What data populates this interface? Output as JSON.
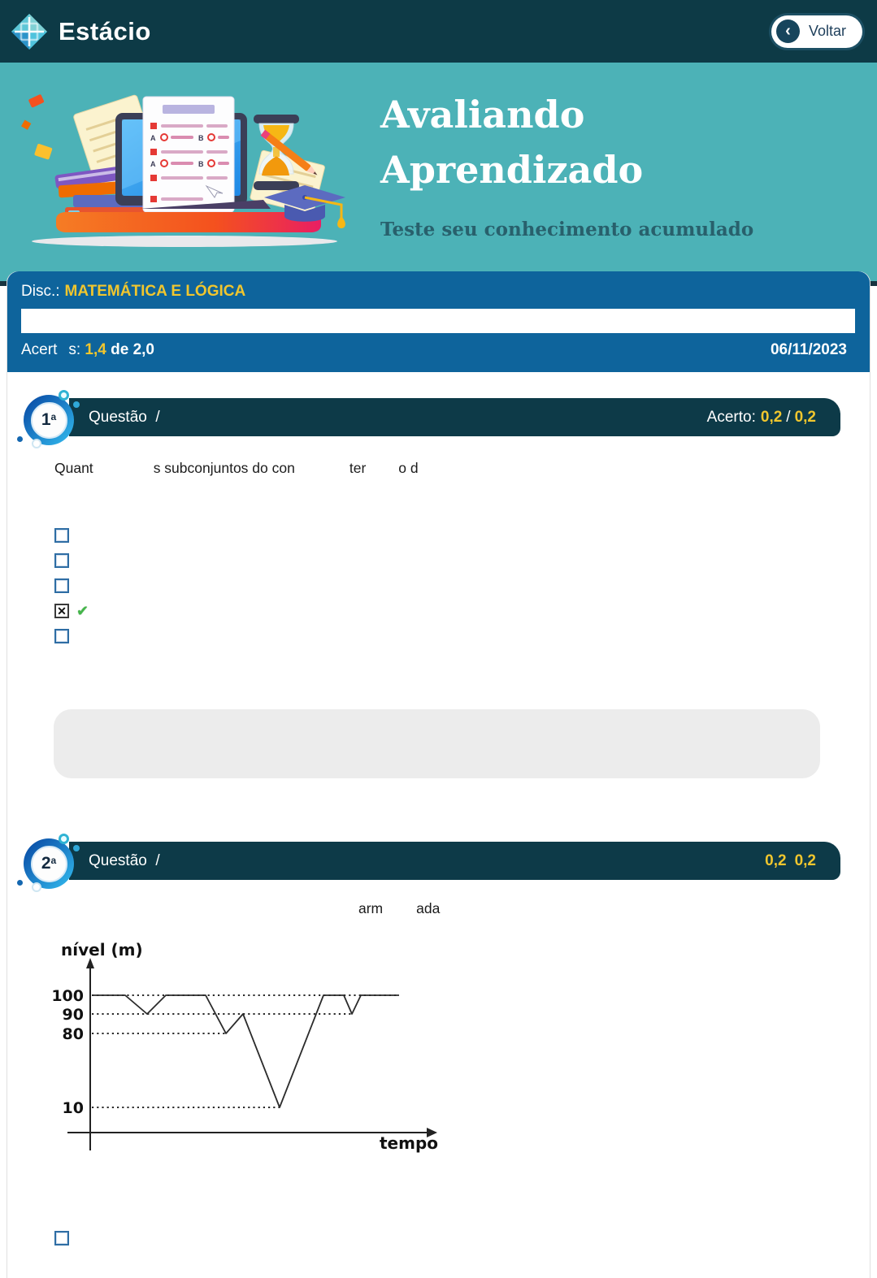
{
  "topbar": {
    "brand": "Estácio",
    "back_button": "Voltar"
  },
  "hero": {
    "title_line1": "Avaliando",
    "title_line2": "Aprendizado",
    "subtitle": "Teste seu conhecimento acumulado"
  },
  "summary": {
    "disc_label": "Disc.:",
    "disc_name": "MATEMÁTICA E LÓGICA",
    "score_label_start": "Acert",
    "score_label_end": "s:",
    "score_value": "1,4",
    "score_total": "de 2,0",
    "date": "06/11/2023"
  },
  "icons": {
    "back_chevron": "‹",
    "checkbox_x": "✕",
    "correct_check": "✔"
  },
  "colors": {
    "accent_yellow": "#F0C62E",
    "panel_blue": "#0E649C",
    "header_navy": "#0D3A48",
    "band_teal": "#4CB2B7",
    "correct_green": "#43B649"
  },
  "questions": [
    {
      "badge": "1",
      "badge_sup": "a",
      "title": "Questão  /",
      "score_prefix": "Acerto:",
      "score_value": "0,2",
      "score_sep": "/",
      "score_total": "0,2",
      "text_fragments": [
        "Quant",
        "s subconjuntos do con",
        "ter",
        "o d"
      ],
      "options": [
        {
          "checked": false,
          "correct_mark": false
        },
        {
          "checked": false,
          "correct_mark": false
        },
        {
          "checked": false,
          "correct_mark": false
        },
        {
          "checked": true,
          "correct_mark": true
        },
        {
          "checked": false,
          "correct_mark": false
        }
      ]
    },
    {
      "badge": "2",
      "badge_sup": "a",
      "title": "Questão  /",
      "score_prefix": "",
      "score_value": "0,2",
      "score_sep": "",
      "score_total": "0,2",
      "text_fragments": [
        "arm",
        "ada"
      ],
      "options": [
        {
          "checked": false,
          "correct_mark": false
        }
      ]
    }
  ],
  "chart_data": {
    "type": "line",
    "title": "",
    "ylabel": "nível (m)",
    "xlabel": "tempo",
    "ytick_labels": [
      "100",
      "90",
      "80",
      "10"
    ],
    "y_axis_not_to_scale": true,
    "grid": "dotted guide lines at y = 100, 90, 80, 10",
    "legend": "none",
    "series": [
      {
        "name": "nível",
        "points": [
          [
            0,
            100
          ],
          [
            41,
            100
          ],
          [
            68,
            90
          ],
          [
            91,
            100
          ],
          [
            140,
            100
          ],
          [
            165,
            80
          ],
          [
            186,
            90
          ],
          [
            231,
            10
          ],
          [
            285,
            100
          ],
          [
            310,
            100
          ],
          [
            320,
            90
          ],
          [
            331,
            100
          ],
          [
            378,
            100
          ]
        ]
      }
    ],
    "level_positions": {
      "100": 77,
      "90": 100,
      "80": 124,
      "10": 215
    },
    "dotted_guides": [
      {
        "level": "100",
        "x_end": 378
      },
      {
        "level": "90",
        "x_end": 320
      },
      {
        "level": "80",
        "x_end": 165
      },
      {
        "level": "10",
        "x_end": 231
      }
    ],
    "x_origin": 54
  }
}
